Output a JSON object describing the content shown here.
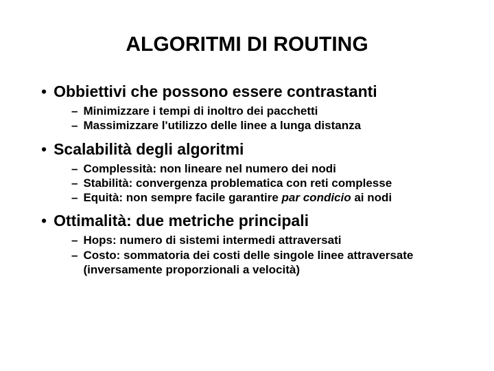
{
  "slide": {
    "title": "ALGORITMI DI ROUTING",
    "title_fontsize": 30,
    "l1_fontsize": 23,
    "l2_fontsize": 17,
    "background_color": "#ffffff",
    "text_color": "#000000",
    "sections": [
      {
        "label": "Obbiettivi che possono essere contrastanti",
        "items": [
          {
            "text": "Minimizzare i tempi di inoltro dei pacchetti"
          },
          {
            "text": "Massimizzare l'utilizzo delle linee a lunga distanza"
          }
        ]
      },
      {
        "label": "Scalabilità degli algoritmi",
        "items": [
          {
            "text": "Complessità: non lineare nel numero dei nodi"
          },
          {
            "text": "Stabilità: convergenza problematica con reti complesse"
          },
          {
            "html": "Equità: non sempre facile garantire <i>par condicio</i> ai nodi"
          }
        ]
      },
      {
        "label": "Ottimalità: due metriche principali",
        "items": [
          {
            "text": "Hops: numero di sistemi intermedi attraversati"
          },
          {
            "text": "Costo: sommatoria dei costi delle singole linee attraversate (inversamente proporzionali a velocità)"
          }
        ]
      }
    ]
  }
}
